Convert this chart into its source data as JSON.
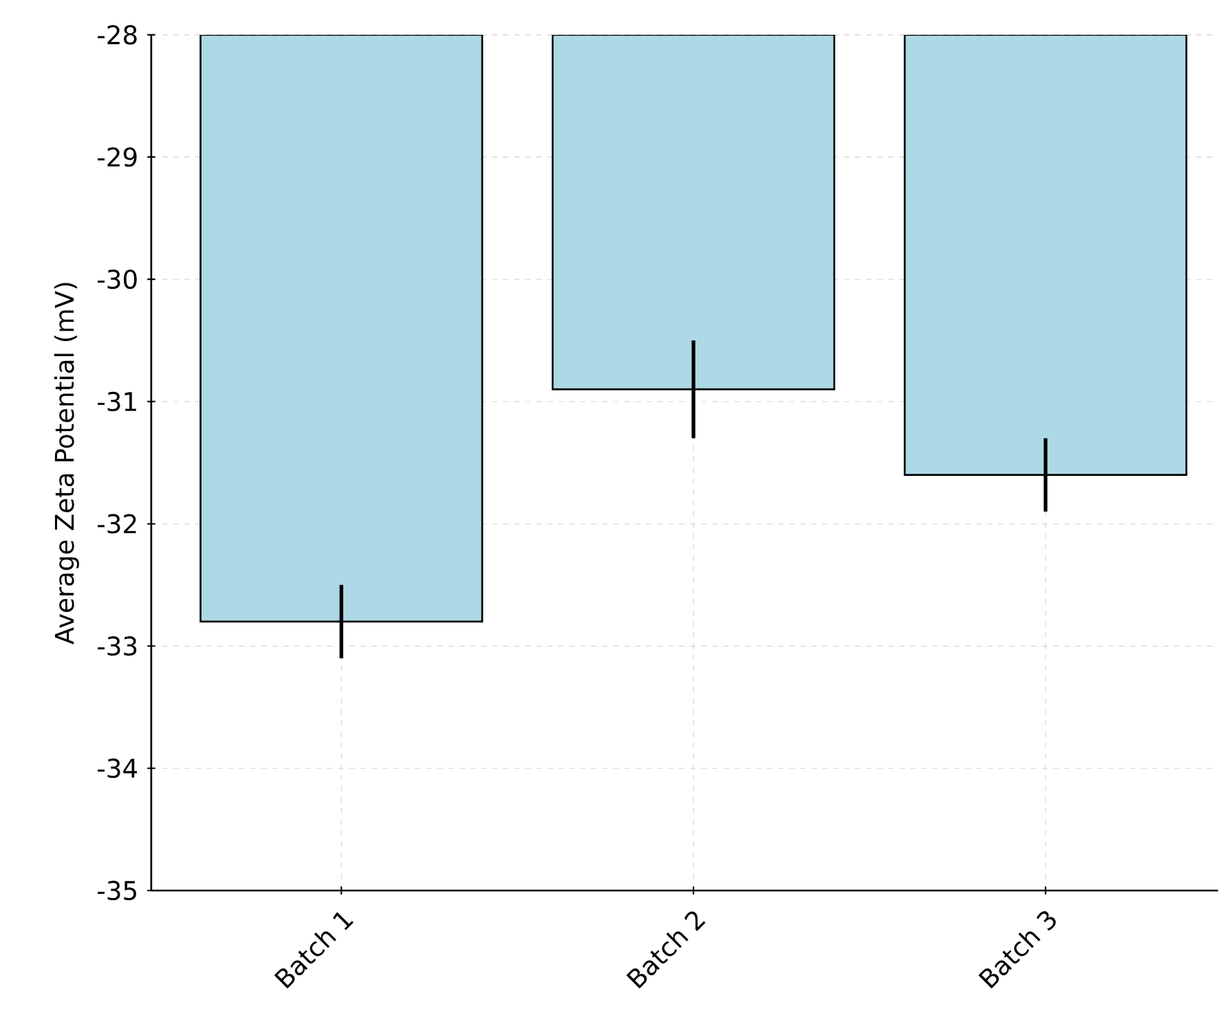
{
  "chart_data": {
    "type": "bar",
    "ylabel": "Average Zeta Potential (mV)",
    "categories": [
      "Batch 1",
      "Batch 2",
      "Batch 3"
    ],
    "values": [
      -32.8,
      -30.9,
      -31.6
    ],
    "errors": [
      0.3,
      0.4,
      0.3
    ],
    "color": "#add8e6",
    "ylim": [
      -35,
      -28
    ],
    "yticks": [
      -35,
      -34,
      -33,
      -32,
      -31,
      -30,
      -29,
      -28
    ],
    "grid": true
  }
}
